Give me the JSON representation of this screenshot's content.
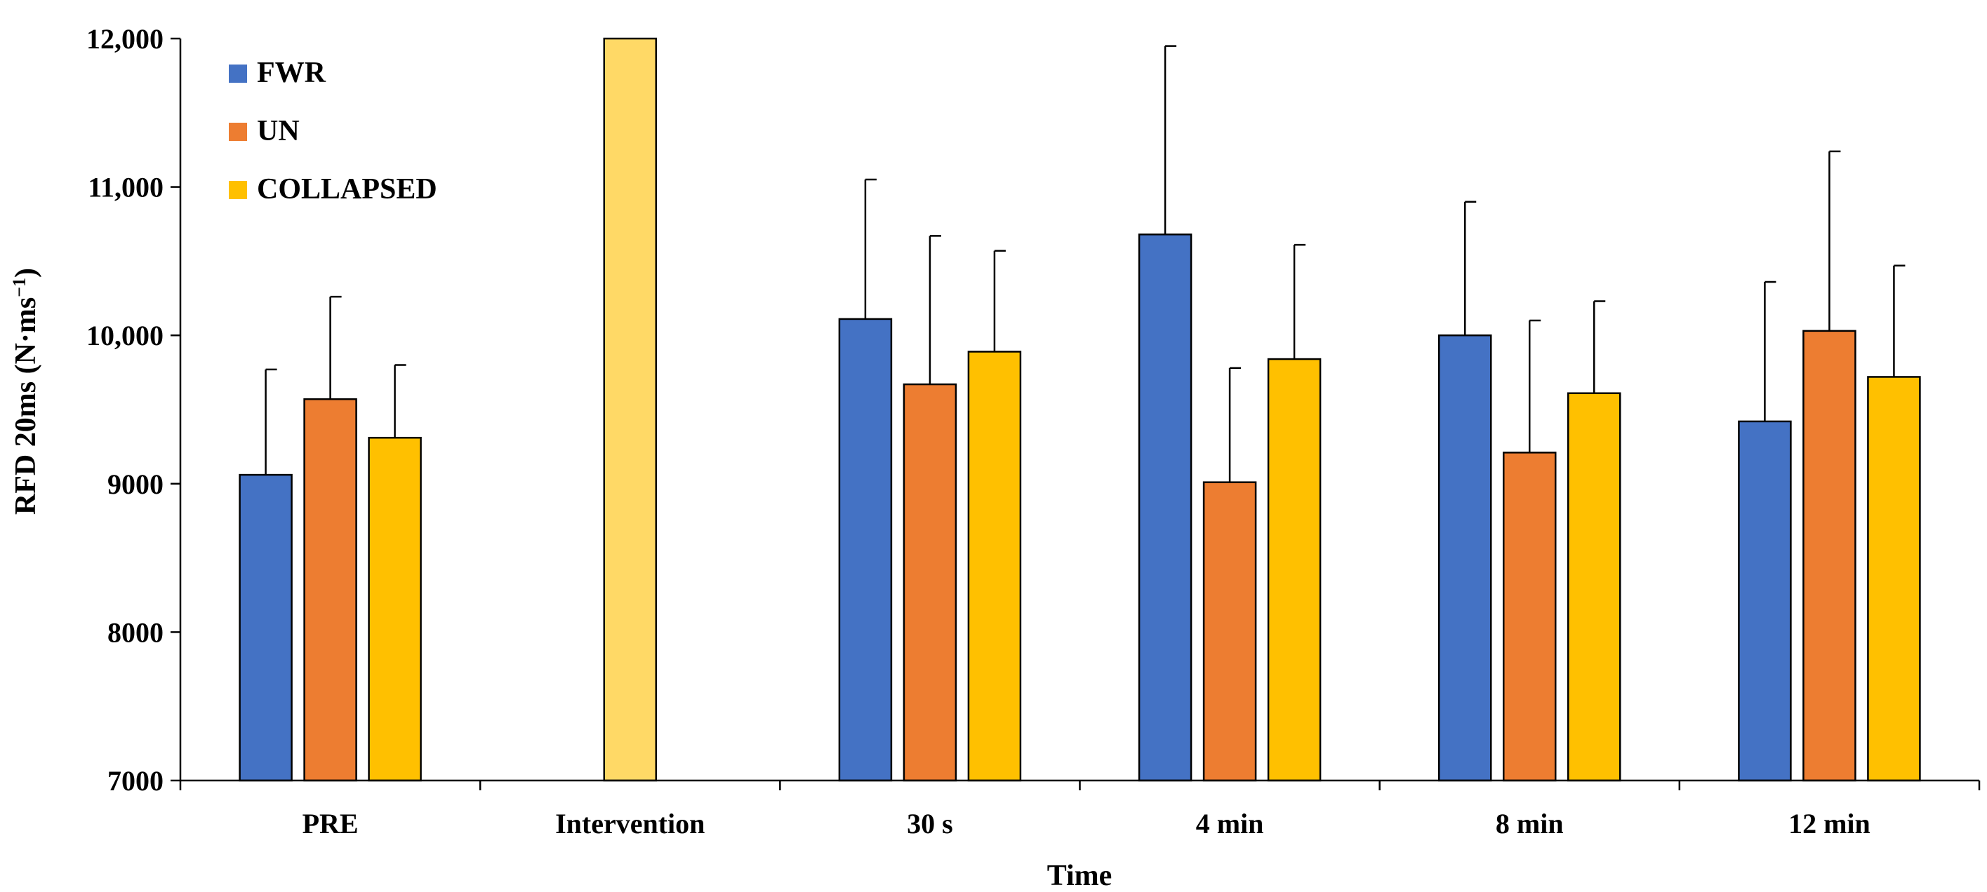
{
  "chart_data": {
    "type": "bar",
    "title": "",
    "xlabel": "Time",
    "ylabel": "RFD 20ms (N·ms⁻¹)",
    "ylabel_main": "RFD 20ms (N·ms",
    "ylabel_sup": "−1",
    "ylabel_close": ")",
    "ylim": [
      7000,
      12000
    ],
    "yticks": [
      7000,
      8000,
      9000,
      10000,
      11000,
      12000
    ],
    "ytick_labels": [
      "7000",
      "8000",
      "9000",
      "10,000",
      "11,000",
      "12,000"
    ],
    "categories": [
      "PRE",
      "Intervention",
      "30 s",
      "4 min",
      "8 min",
      "12 min"
    ],
    "legend_position": "top-left",
    "series": [
      {
        "name": "FWR",
        "color": "#4472C4",
        "values": [
          9060,
          null,
          10110,
          10680,
          10000,
          9420
        ],
        "errors": [
          710,
          null,
          940,
          1270,
          900,
          940
        ]
      },
      {
        "name": "UN",
        "color": "#ED7D31",
        "values": [
          9570,
          null,
          9670,
          9010,
          9210,
          10030
        ],
        "errors": [
          690,
          null,
          1000,
          770,
          890,
          1210
        ]
      },
      {
        "name": "COLLAPSED",
        "color": "#FFC000",
        "values": [
          9310,
          null,
          9890,
          9840,
          9610,
          9720
        ],
        "errors": [
          490,
          null,
          680,
          770,
          620,
          750
        ]
      }
    ],
    "extra_bars": [
      {
        "category": "Intervention",
        "value": 12000,
        "color": "#FFD966"
      }
    ]
  }
}
